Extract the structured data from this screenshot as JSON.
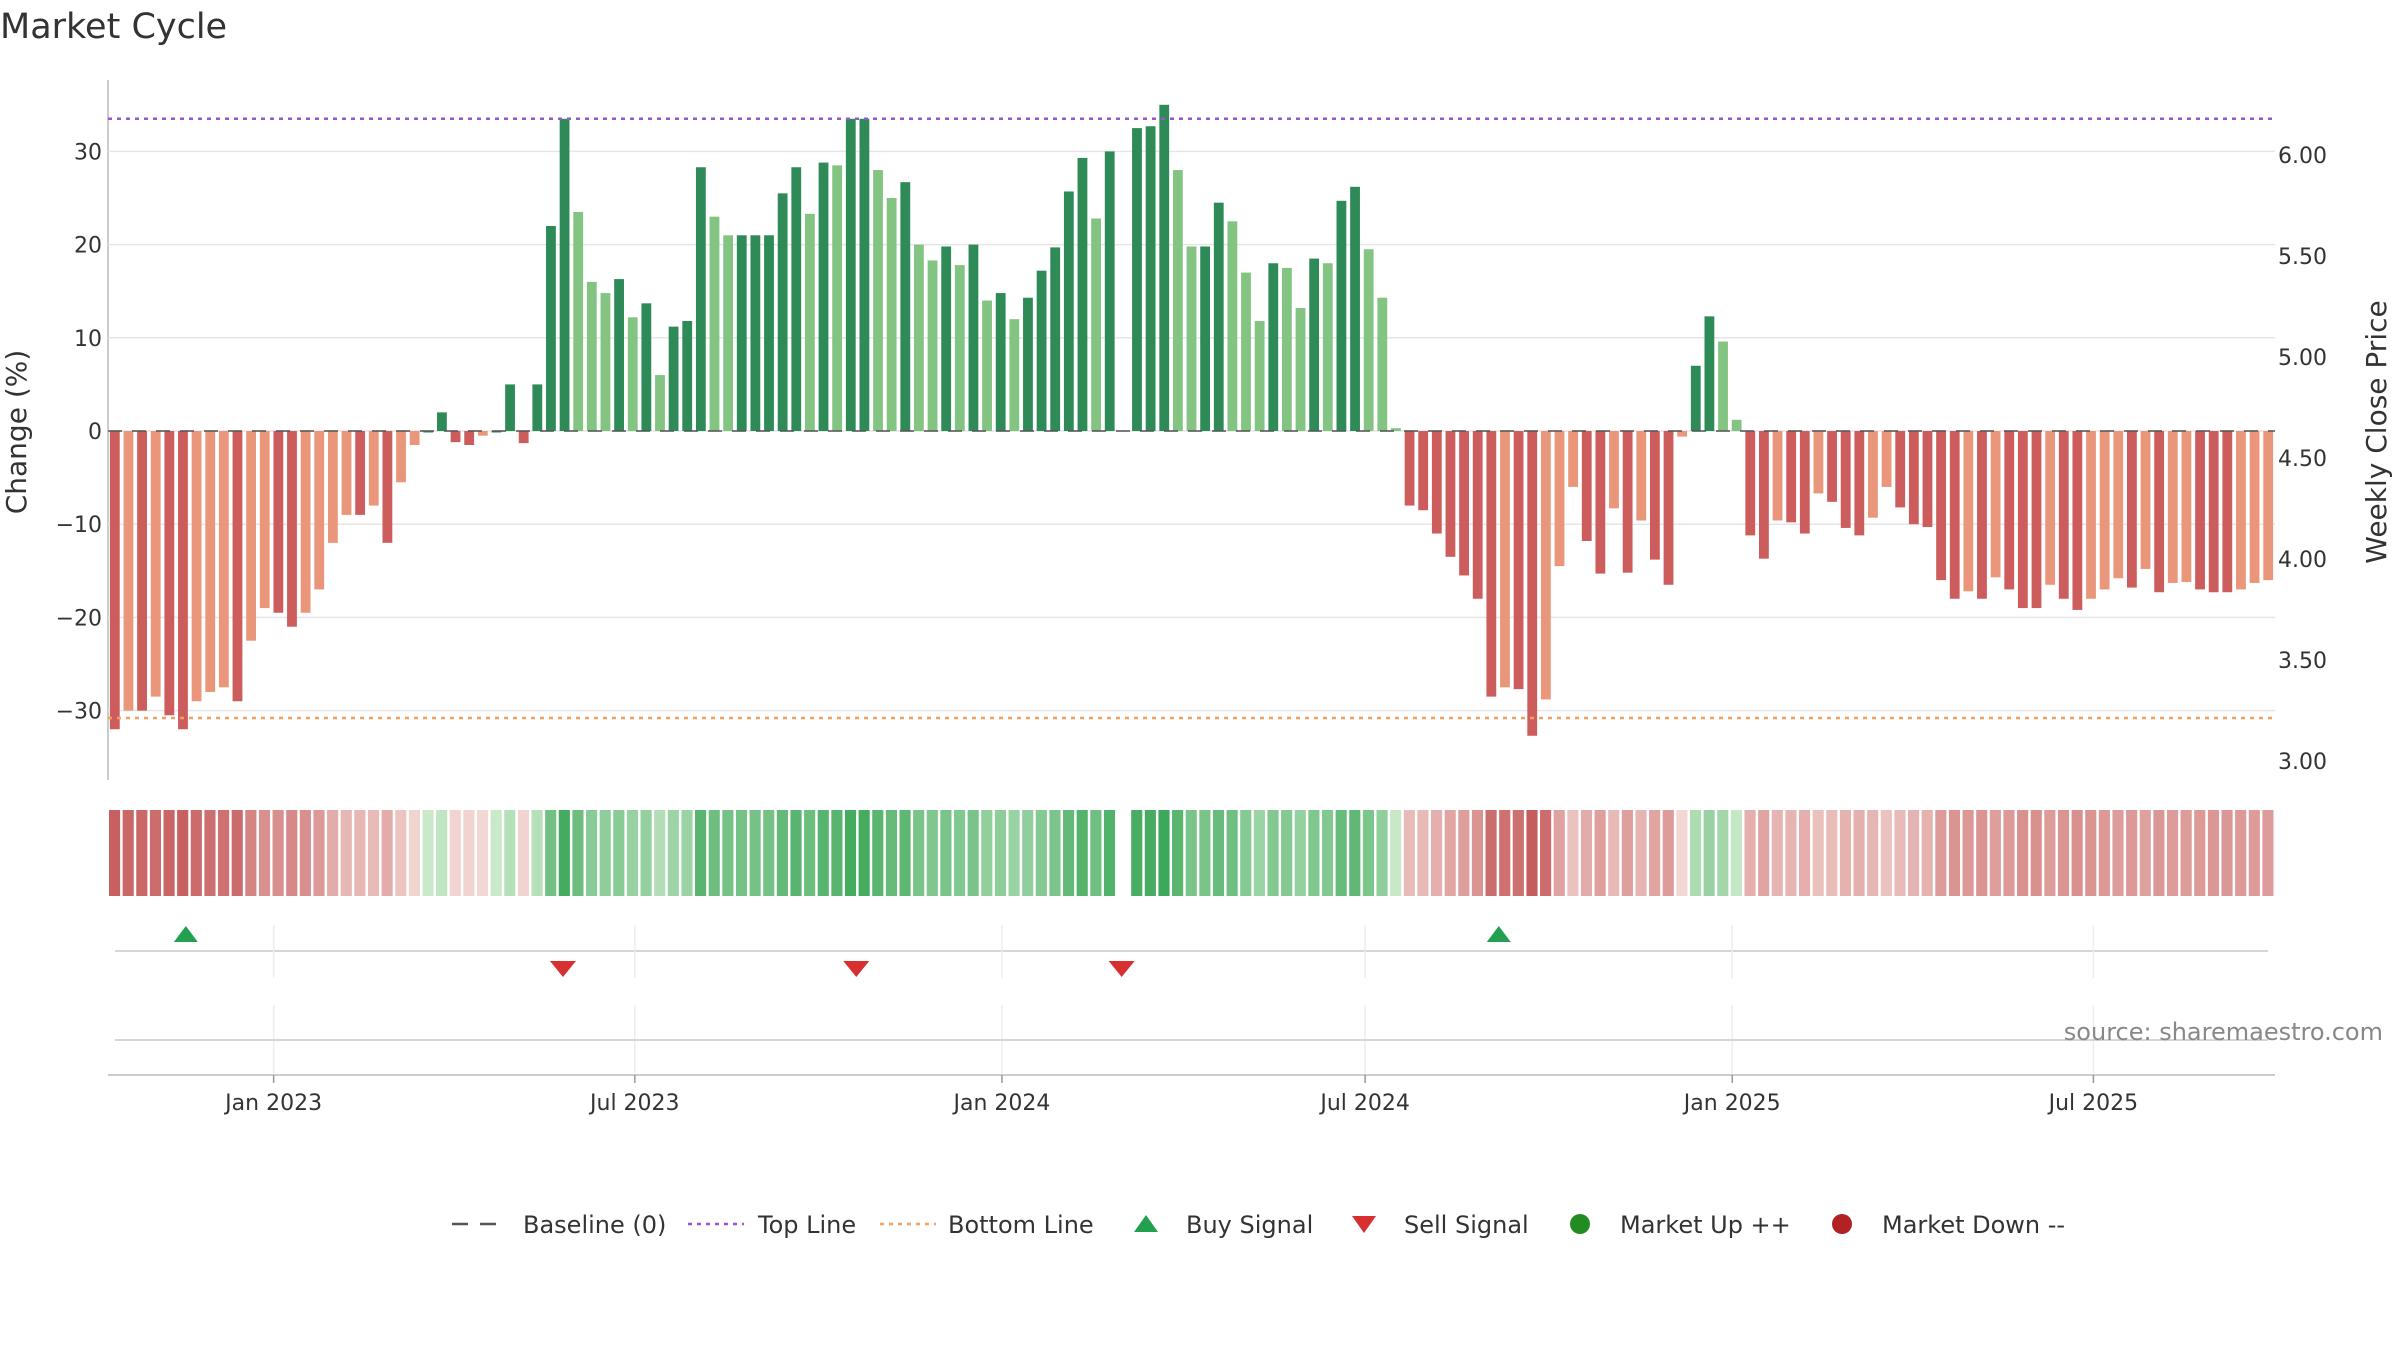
{
  "chart_data": {
    "type": "bar",
    "title": "Market Cycle",
    "source": "source: sharemaestro.com",
    "ylabel_left": "Change (%)",
    "ylabel_right": "Weekly Close Price",
    "ylim_left": [
      -38,
      38
    ],
    "ylim_right": [
      2.9,
      6.3
    ],
    "yticks_left": [
      30,
      20,
      10,
      0,
      -10,
      -20,
      -30
    ],
    "ytick_labels_left": [
      "30",
      "20",
      "10",
      "0",
      "−10",
      "−20",
      "−30"
    ],
    "yticks_right": [
      6.0,
      5.5,
      5.0,
      4.5,
      4.0,
      3.5,
      3.0
    ],
    "ytick_labels_right": [
      "6.00",
      "5.50",
      "5.00",
      "4.50",
      "4.00",
      "3.50",
      "3.00"
    ],
    "top_line": 33.5,
    "bottom_line": -30.8,
    "x_start": "2022-10-14",
    "x_end": "2025-09-26",
    "date_ticks": [
      {
        "date": "2023-01-01",
        "label": "Jan 2023"
      },
      {
        "date": "2023-07-01",
        "label": "Jul 2023"
      },
      {
        "date": "2024-01-01",
        "label": "Jan 2024"
      },
      {
        "date": "2024-07-01",
        "label": "Jul 2024"
      },
      {
        "date": "2025-01-01",
        "label": "Jan 2025"
      },
      {
        "date": "2025-07-01",
        "label": "Jul 2025"
      }
    ],
    "weeks": {
      "start": "2022-10-14",
      "values": [
        -32,
        -30,
        -30,
        -28.5,
        -30.5,
        -32,
        -29,
        -28,
        -27.5,
        -29,
        -22.5,
        -19,
        -19.5,
        -21,
        -19.5,
        -17,
        -12,
        -9,
        -9,
        -8,
        -12,
        -5.5,
        -1.5,
        0,
        2,
        -1.2,
        -1.5,
        -0.5,
        0,
        5,
        -1.3,
        5,
        22,
        33.5,
        23.5,
        16,
        14.8,
        16.3,
        12.2,
        13.7,
        6,
        11.2,
        11.8,
        28.3,
        23,
        21,
        21,
        21,
        21,
        25.5,
        28.3,
        23.3,
        28.8,
        28.5,
        33.5,
        33.5,
        28,
        25,
        26.7,
        20,
        18.3,
        19.8,
        17.8,
        20,
        14,
        14.8,
        12,
        14.3,
        17.2,
        19.7,
        25.7,
        29.3,
        22.8,
        30,
        null,
        32.5,
        32.7,
        35,
        28,
        19.8,
        19.8,
        24.5,
        22.5,
        17,
        11.8,
        18,
        17.5,
        13.2,
        18.5,
        18,
        24.7,
        26.2,
        19.5,
        14.3,
        0.3,
        -8,
        -8.5,
        -11,
        -13.5,
        -15.5,
        -18,
        -28.5,
        -27.5,
        -27.7,
        -32.7,
        -28.8,
        -14.5,
        -6,
        -11.8,
        -15.3,
        -8.3,
        -15.2,
        -9.6,
        -13.8,
        -16.5,
        -0.6,
        7,
        12.3,
        9.6,
        1.2,
        -11.2,
        -13.7,
        -9.6,
        -9.8,
        -11,
        -6.7,
        -7.6,
        -10.4,
        -11.2,
        -9.3,
        -6,
        -8.2,
        -10,
        -10.3,
        -16,
        -18,
        -17.2,
        -18,
        -15.7,
        -17,
        -19,
        -19,
        -16.5,
        -18,
        -19.2,
        -18,
        -17,
        -15.8,
        -16.8,
        -14.8,
        -17.3,
        -16.3,
        -16.2,
        -17,
        -17.3,
        -17.3,
        -17,
        -16.3,
        -16
      ]
    },
    "buy_signals": [
      "2022-11-18",
      "2024-09-06"
    ],
    "sell_signals": [
      "2023-05-26",
      "2023-10-20",
      "2024-03-01"
    ],
    "colors": {
      "up_strong": "#2e8b57",
      "up_light": "#83c483",
      "down_strong": "#cd5c5c",
      "down_light": "#e9967a",
      "top_line": "#9955cc",
      "bottom_line": "#f0a060",
      "baseline": "#555555",
      "buy": "#22a050",
      "sell": "#d63030",
      "market_up": "#228b22",
      "market_down": "#b22222"
    },
    "legend": [
      {
        "label": "Baseline (0)",
        "symbol": "dash"
      },
      {
        "label": "Top Line",
        "symbol": "dot-purple"
      },
      {
        "label": "Bottom Line",
        "symbol": "dot-orange"
      },
      {
        "label": "Buy Signal",
        "symbol": "triangle-up"
      },
      {
        "label": "Sell Signal",
        "symbol": "triangle-down"
      },
      {
        "label": "Market Up ++",
        "symbol": "circle-green"
      },
      {
        "label": "Market Down --",
        "symbol": "circle-red"
      }
    ]
  }
}
